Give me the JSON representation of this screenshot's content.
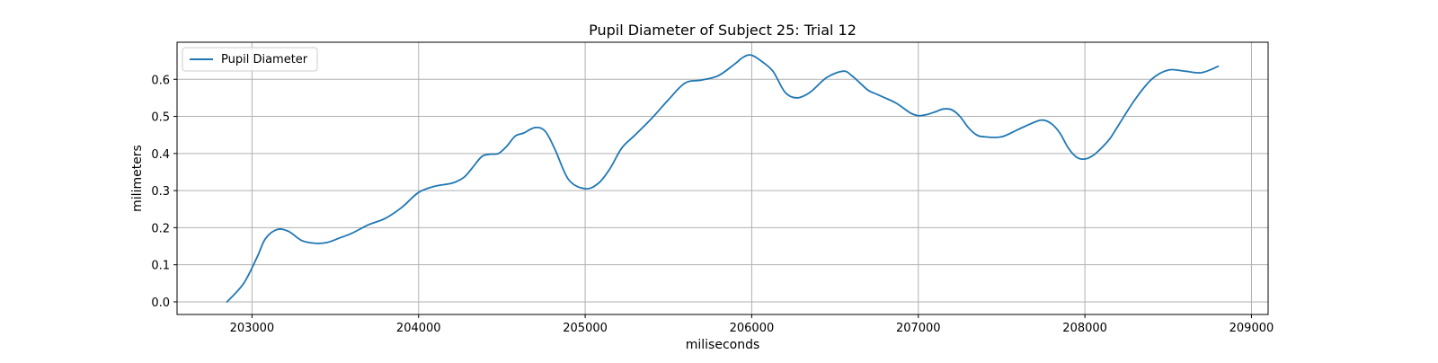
{
  "chart_data": {
    "type": "line",
    "title": "Pupil Diameter of Subject 25: Trial 12",
    "xlabel": "miliseconds",
    "ylabel": "milimeters",
    "xlim": [
      202550,
      209100
    ],
    "ylim": [
      -0.034,
      0.7
    ],
    "xticks": [
      203000,
      204000,
      205000,
      206000,
      207000,
      208000,
      209000
    ],
    "yticks": [
      0.0,
      0.1,
      0.2,
      0.3,
      0.4,
      0.5,
      0.6
    ],
    "xtick_labels": [
      "203000",
      "204000",
      "205000",
      "206000",
      "207000",
      "208000",
      "209000"
    ],
    "ytick_labels": [
      "0.0",
      "0.1",
      "0.2",
      "0.3",
      "0.4",
      "0.5",
      "0.6"
    ],
    "grid": true,
    "legend_position": "top-left",
    "series": [
      {
        "name": "Pupil Diameter",
        "color": "#1f77b4",
        "x": [
          202850,
          202950,
          203030,
          203080,
          203150,
          203220,
          203300,
          203380,
          203450,
          203530,
          203600,
          203700,
          203800,
          203900,
          204000,
          204100,
          204200,
          204270,
          204320,
          204380,
          204430,
          204480,
          204530,
          204580,
          204630,
          204700,
          204760,
          204820,
          204900,
          205000,
          205080,
          205150,
          205220,
          205300,
          205400,
          205500,
          205600,
          205700,
          205800,
          205900,
          205950,
          206000,
          206070,
          206130,
          206200,
          206270,
          206350,
          206450,
          206550,
          206600,
          206650,
          206700,
          206750,
          206800,
          206870,
          206950,
          207000,
          207050,
          207100,
          207150,
          207200,
          207250,
          207300,
          207350,
          207400,
          207500,
          207600,
          207700,
          207750,
          207800,
          207850,
          207900,
          207950,
          208000,
          208050,
          208100,
          208150,
          208200,
          208300,
          208400,
          208500,
          208600,
          208700,
          208800
        ],
        "values": [
          0.0,
          0.05,
          0.12,
          0.17,
          0.195,
          0.19,
          0.165,
          0.158,
          0.16,
          0.173,
          0.185,
          0.208,
          0.225,
          0.255,
          0.295,
          0.312,
          0.32,
          0.335,
          0.36,
          0.392,
          0.398,
          0.4,
          0.42,
          0.447,
          0.455,
          0.47,
          0.46,
          0.41,
          0.33,
          0.305,
          0.32,
          0.36,
          0.415,
          0.45,
          0.495,
          0.545,
          0.59,
          0.598,
          0.61,
          0.642,
          0.66,
          0.665,
          0.645,
          0.62,
          0.565,
          0.55,
          0.565,
          0.605,
          0.622,
          0.61,
          0.59,
          0.57,
          0.56,
          0.55,
          0.535,
          0.51,
          0.502,
          0.505,
          0.512,
          0.52,
          0.518,
          0.5,
          0.47,
          0.45,
          0.445,
          0.445,
          0.465,
          0.485,
          0.49,
          0.48,
          0.455,
          0.415,
          0.39,
          0.385,
          0.395,
          0.415,
          0.44,
          0.475,
          0.545,
          0.6,
          0.625,
          0.622,
          0.618,
          0.635
        ]
      }
    ]
  }
}
